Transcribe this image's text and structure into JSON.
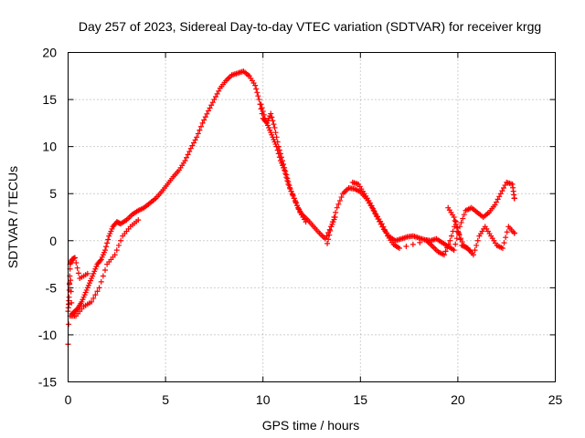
{
  "chart_data": {
    "type": "scatter",
    "title": "Day 257 of 2023, Sidereal Day-to-day VTEC variation (SDTVAR) for receiver krgg",
    "xlabel": "GPS time / hours",
    "ylabel": "SDTVAR / TECUs",
    "xlim": [
      0,
      25
    ],
    "ylim": [
      -15,
      20
    ],
    "xticks": [
      0,
      5,
      10,
      15,
      20,
      25
    ],
    "yticks": [
      -15,
      -10,
      -5,
      0,
      5,
      10,
      15,
      20
    ],
    "grid": true,
    "marker": "+",
    "color": "#ff0000",
    "series": [
      {
        "name": "SDTVAR",
        "x": [
          0.0,
          0.05,
          0.1,
          0.2,
          0.3,
          0.5,
          0.7,
          0.9,
          1.1,
          1.3,
          1.5,
          1.7,
          1.9,
          2.1,
          2.3,
          2.5,
          2.7,
          3.0,
          3.3,
          3.6,
          3.9,
          4.2,
          4.5,
          4.8,
          5.1,
          5.4,
          5.7,
          6.0,
          6.3,
          6.6,
          6.9,
          7.2,
          7.5,
          7.8,
          8.1,
          8.4,
          8.7,
          9.0,
          9.3,
          9.6,
          9.8,
          10.0,
          10.2,
          10.4,
          10.6,
          10.8,
          11.0,
          11.2,
          11.4,
          11.6,
          11.8,
          12.0,
          12.3,
          12.6,
          12.9,
          13.2,
          13.5,
          13.8,
          14.1,
          14.4,
          14.7,
          15.0,
          15.3,
          15.6,
          15.9,
          16.2,
          16.5,
          16.8,
          17.1,
          17.4,
          17.7,
          18.0,
          18.3,
          18.6,
          18.9,
          19.2,
          19.5,
          19.8,
          20.1,
          20.4,
          20.7,
          21.0,
          21.3,
          21.6,
          21.9,
          22.2,
          22.5,
          22.8,
          22.9
        ],
        "y": [
          -7.5,
          -6.0,
          -3.0,
          -7.8,
          -7.6,
          -7.2,
          -6.5,
          -5.5,
          -4.5,
          -3.5,
          -2.5,
          -2.0,
          -1.0,
          0.5,
          1.5,
          2.0,
          1.8,
          2.2,
          2.8,
          3.2,
          3.5,
          4.0,
          4.5,
          5.2,
          6.0,
          6.8,
          7.5,
          8.5,
          9.8,
          11.0,
          12.5,
          13.8,
          15.0,
          16.2,
          17.0,
          17.6,
          17.8,
          18.0,
          17.5,
          16.5,
          15.0,
          13.0,
          12.5,
          13.5,
          12.0,
          10.0,
          8.5,
          7.0,
          5.5,
          4.5,
          3.5,
          2.8,
          2.2,
          1.5,
          0.8,
          0.2,
          1.5,
          3.5,
          5.0,
          5.6,
          5.5,
          5.2,
          4.5,
          3.5,
          2.3,
          1.2,
          0.4,
          0.0,
          0.2,
          0.4,
          0.5,
          0.3,
          0.1,
          0.0,
          0.2,
          -0.2,
          -0.6,
          -1.0,
          1.5,
          3.2,
          3.5,
          3.0,
          2.5,
          3.0,
          3.8,
          5.0,
          6.2,
          6.0,
          4.5
        ]
      },
      {
        "name": "SDTVAR",
        "x": [
          0.1,
          0.4,
          0.8,
          1.2,
          1.6,
          2.0,
          2.4,
          2.8,
          3.2,
          3.6,
          9.9,
          10.1,
          10.3,
          10.5,
          10.7,
          10.9,
          11.1,
          11.3,
          11.6,
          11.9,
          12.2,
          14.6,
          14.9,
          15.2,
          15.5,
          15.8,
          16.1,
          16.4,
          16.7,
          17.0,
          18.4,
          18.7,
          19.0,
          19.3,
          19.6,
          19.9,
          20.2,
          20.5,
          20.8,
          21.1,
          21.4,
          21.7,
          22.0,
          22.3,
          22.6,
          22.9
        ],
        "y": [
          -8.0,
          -8.0,
          -7.0,
          -6.5,
          -5.0,
          -2.5,
          -1.5,
          0.5,
          1.5,
          2.2,
          14.5,
          13.0,
          12.0,
          11.0,
          10.0,
          8.5,
          7.5,
          6.0,
          4.5,
          3.0,
          2.0,
          6.2,
          6.0,
          5.0,
          4.0,
          2.8,
          1.8,
          0.5,
          -0.4,
          -0.8,
          0.0,
          -0.6,
          -1.2,
          -1.5,
          0.0,
          2.0,
          -0.5,
          -0.8,
          -1.5,
          0.5,
          1.5,
          0.5,
          -0.5,
          -0.8,
          1.5,
          0.8
        ]
      },
      {
        "name": "SDTVAR",
        "x": [
          0.0,
          0.1,
          0.2,
          0.35,
          0.6,
          1.0,
          13.3,
          13.5,
          13.7,
          19.5,
          19.8,
          20.0,
          20.3,
          20.6
        ],
        "y": [
          -11.0,
          -2.5,
          -2.0,
          -1.8,
          -4.0,
          -3.5,
          -0.3,
          1.5,
          2.5,
          3.5,
          2.5,
          1.0,
          -0.5,
          -1.0
        ]
      }
    ]
  }
}
